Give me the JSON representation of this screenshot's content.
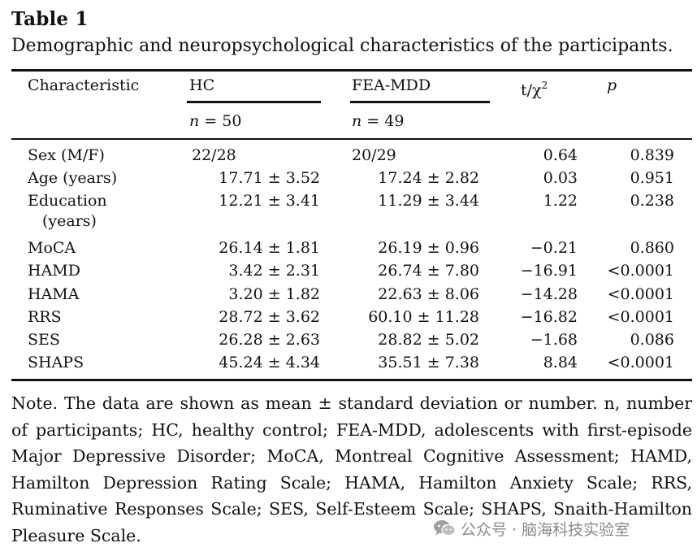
{
  "table": {
    "label": "Table 1",
    "caption": "Demographic and neuropsychological characteristics of the participants.",
    "headers": {
      "characteristic": "Characteristic",
      "hc": "HC",
      "fea": "FEA-MDD",
      "stat": "t/χ",
      "stat_sup": "2",
      "p": "p"
    },
    "n_row": {
      "hc_n": "n",
      "hc_eq": " = 50",
      "fea_n": "n",
      "fea_eq": " = 49"
    },
    "rows": [
      {
        "name": "Sex (M/F)",
        "hc": "22/28",
        "fea": "20/29",
        "t": "0.64",
        "p": "0.839"
      },
      {
        "name": "Age (years)",
        "hc": "17.71 ± 3.52",
        "fea": "17.24 ± 2.82",
        "t": "0.03",
        "p": "0.951"
      },
      {
        "name": "Education",
        "name_cont": "(years)",
        "hc": "12.21 ± 3.41",
        "fea": "11.29 ± 3.44",
        "t": "1.22",
        "p": "0.238"
      },
      {
        "name": "MoCA",
        "hc": "26.14 ± 1.81",
        "fea": "26.19 ± 0.96",
        "t": "−0.21",
        "p": "0.860"
      },
      {
        "name": "HAMD",
        "hc": "3.42 ± 2.31",
        "fea": "26.74 ± 7.80",
        "t": "−16.91",
        "p": "<0.0001"
      },
      {
        "name": "HAMA",
        "hc": "3.20 ± 1.82",
        "fea": "22.63 ± 8.06",
        "t": "−14.28",
        "p": "<0.0001"
      },
      {
        "name": "RRS",
        "hc": "28.72 ± 3.62",
        "fea": "60.10 ± 11.28",
        "t": "−16.82",
        "p": "<0.0001"
      },
      {
        "name": "SES",
        "hc": "26.28 ± 2.63",
        "fea": "28.82 ± 5.02",
        "t": "−1.68",
        "p": "0.086"
      },
      {
        "name": "SHAPS",
        "hc": "45.24 ± 4.34",
        "fea": "35.51 ± 7.38",
        "t": "8.84",
        "p": "<0.0001"
      }
    ],
    "note": "Note. The data are shown as mean ± standard deviation or number. n, number of participants; HC, healthy control; FEA-MDD, adolescents with first-episode Major Depressive Disorder; MoCA, Montreal Cognitive Assessment; HAMD, Hamilton Depression Rating Scale; HAMA, Hamilton Anxiety Scale; RRS, Ruminative Responses Scale; SES, Self-Esteem Scale; SHAPS, Snaith-Hamilton Pleasure Scale."
  },
  "watermark": {
    "icon": "wechat-icon",
    "text": "公众号 · 脑海科技实验室",
    "color": "#8a8a8a"
  }
}
